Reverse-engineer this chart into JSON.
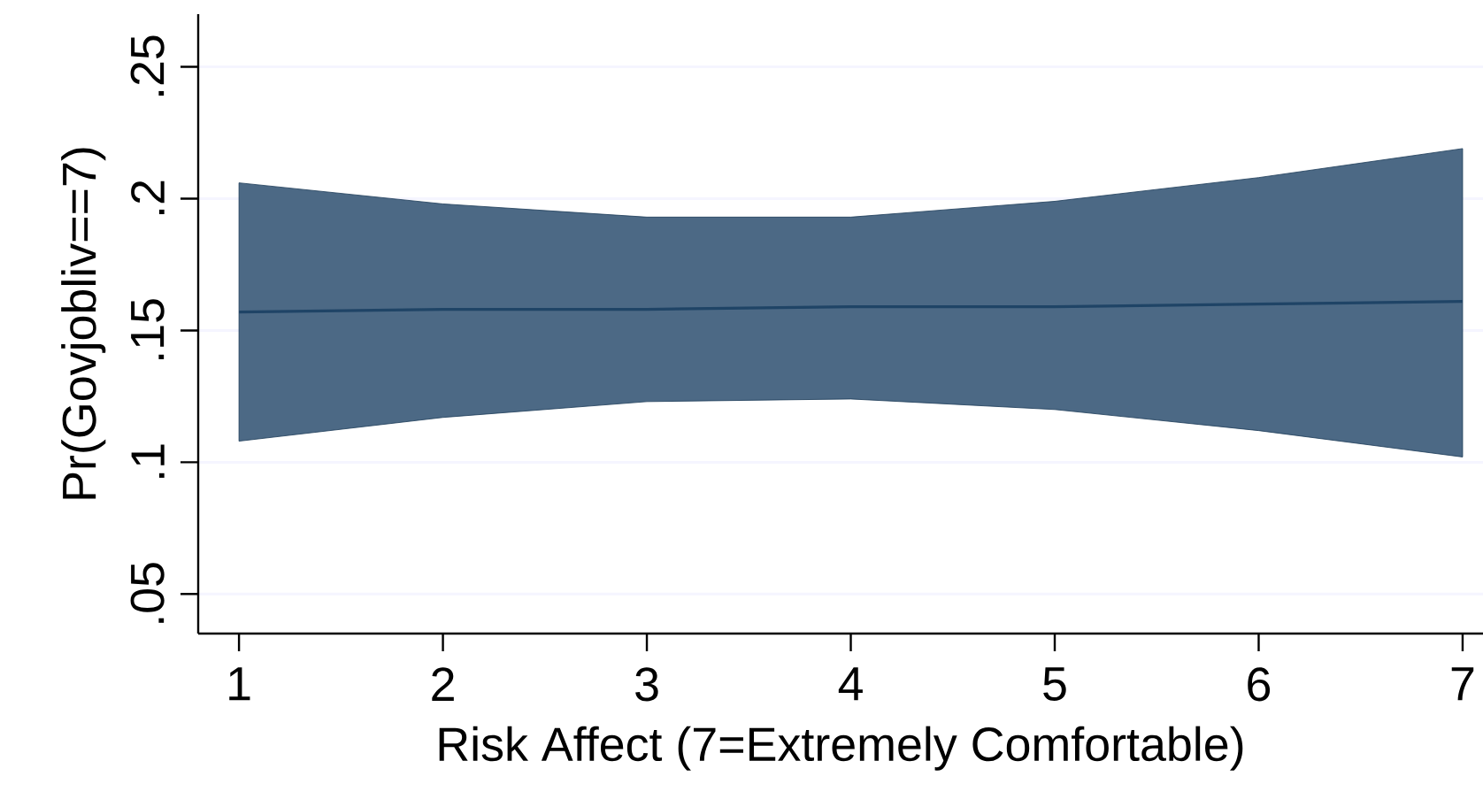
{
  "chart_data": {
    "type": "line",
    "xlabel": "Risk Affect (7=Extremely Comfortable)",
    "ylabel": "Pr(Govjobliv==7)",
    "x": [
      1,
      2,
      3,
      4,
      5,
      6,
      7
    ],
    "series": [
      {
        "color": "#1f4466",
        "values": [
          0.157,
          0.158,
          0.158,
          0.159,
          0.159,
          0.16,
          0.161
        ],
        "lower": [
          0.108,
          0.117,
          0.123,
          0.124,
          0.12,
          0.112,
          0.102
        ],
        "upper": [
          0.206,
          0.198,
          0.193,
          0.193,
          0.199,
          0.208,
          0.219
        ]
      }
    ],
    "xlim": [
      0.8,
      7.1
    ],
    "ylim": [
      0.035,
      0.27
    ],
    "xticks": [
      1,
      2,
      3,
      4,
      5,
      6,
      7
    ],
    "yticks": [
      {
        "value": 0.05,
        "label": ".05"
      },
      {
        "value": 0.1,
        "label": ".1"
      },
      {
        "value": 0.15,
        "label": ".15"
      },
      {
        "value": 0.2,
        "label": ".2"
      },
      {
        "value": 0.25,
        "label": ".25"
      }
    ],
    "grid": "y"
  }
}
